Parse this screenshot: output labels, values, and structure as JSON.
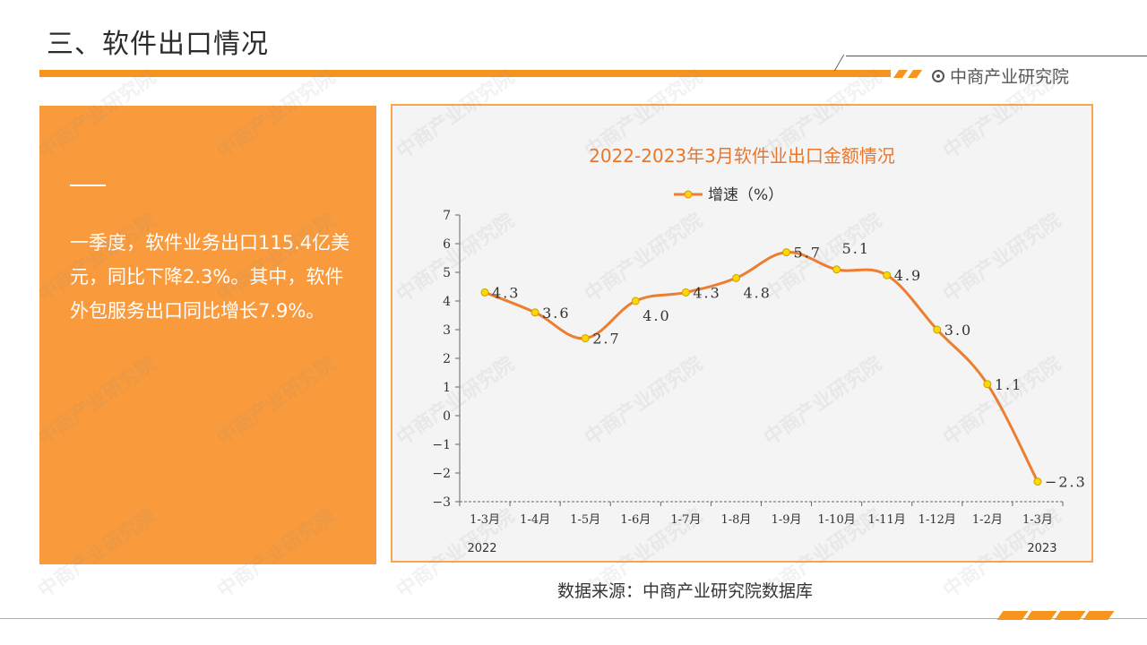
{
  "header": {
    "title": "三、软件出口情况",
    "brand": "中商产业研究院"
  },
  "summary": {
    "text": "一季度，软件业务出口115.4亿美元，同比下降2.3%。其中，软件外包服务出口同比增长7.9%。"
  },
  "chart_data": {
    "type": "line",
    "title": "2022-2023年3月软件业出口金额情况",
    "categories": [
      "1-3月",
      "1-4月",
      "1-5月",
      "1-6月",
      "1-7月",
      "1-8月",
      "1-9月",
      "1-10月",
      "1-11月",
      "1-12月",
      "1-2月",
      "1-3月"
    ],
    "year_labels": {
      "start": "2022",
      "end": "2023"
    },
    "series": [
      {
        "name": "增速（%）",
        "values": [
          4.3,
          3.6,
          2.7,
          4.0,
          4.3,
          4.8,
          5.7,
          5.1,
          4.9,
          3.0,
          1.1,
          -2.3
        ]
      }
    ],
    "ylim": [
      -3,
      7
    ],
    "yticks": [
      -3,
      -2,
      -1,
      0,
      1,
      2,
      3,
      4,
      5,
      6,
      7
    ],
    "legend": "top",
    "grid": false,
    "line_color": "#ed7d31",
    "marker_color": "#ffd700"
  },
  "footer": {
    "source": "数据来源：中商产业研究院数据库"
  }
}
